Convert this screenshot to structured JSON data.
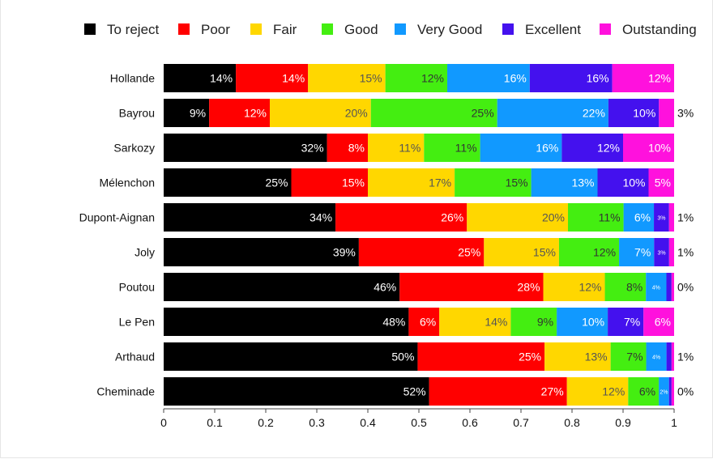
{
  "chart_data": {
    "type": "bar",
    "orientation": "horizontal",
    "stacked": true,
    "title": "",
    "xlabel": "",
    "ylabel": "",
    "xlim": [
      0,
      1
    ],
    "xticks": [
      "0",
      "0.1",
      "0.2",
      "0.3",
      "0.4",
      "0.5",
      "0.6",
      "0.7",
      "0.8",
      "0.9",
      "1"
    ],
    "legend_position": "top",
    "categories": [
      "Hollande",
      "Bayrou",
      "Sarkozy",
      "Mélenchon",
      "Dupont-Aignan",
      "Joly",
      "Poutou",
      "Le Pen",
      "Arthaud",
      "Cheminade"
    ],
    "series": [
      {
        "name": "To reject",
        "color": "#000000",
        "label_color": "#ffffff",
        "values": [
          0.14,
          0.09,
          0.32,
          0.25,
          0.34,
          0.39,
          0.46,
          0.48,
          0.5,
          0.52
        ]
      },
      {
        "name": "Poor",
        "color": "#ff0000",
        "label_color": "#ffffff",
        "values": [
          0.14,
          0.12,
          0.08,
          0.15,
          0.26,
          0.25,
          0.28,
          0.06,
          0.25,
          0.27
        ]
      },
      {
        "name": "Fair",
        "color": "#ffd700",
        "label_color": "#555555",
        "values": [
          0.15,
          0.2,
          0.11,
          0.17,
          0.2,
          0.15,
          0.12,
          0.14,
          0.13,
          0.12
        ]
      },
      {
        "name": "Good",
        "color": "#44ee11",
        "label_color": "#333333",
        "values": [
          0.12,
          0.25,
          0.11,
          0.15,
          0.11,
          0.12,
          0.08,
          0.09,
          0.07,
          0.06
        ]
      },
      {
        "name": "Very Good",
        "color": "#1199ff",
        "label_color": "#ffffff",
        "values": [
          0.16,
          0.22,
          0.16,
          0.13,
          0.06,
          0.07,
          0.04,
          0.1,
          0.04,
          0.02
        ]
      },
      {
        "name": "Excellent",
        "color": "#4411ee",
        "label_color": "#ffffff",
        "values": [
          0.16,
          0.1,
          0.12,
          0.1,
          0.03,
          0.03,
          0.01,
          0.07,
          0.01,
          0.005
        ]
      },
      {
        "name": "Outstanding",
        "color": "#ff11dd",
        "label_color": "#ffffff",
        "values": [
          0.12,
          0.03,
          0.1,
          0.05,
          0.01,
          0.01,
          0.005,
          0.06,
          0.005,
          0.005
        ]
      }
    ],
    "value_labels": [
      [
        "14%",
        "14%",
        "15%",
        "12%",
        "16%",
        "16%",
        "12%"
      ],
      [
        "9%",
        "12%",
        "20%",
        "25%",
        "22%",
        "10%",
        "3%"
      ],
      [
        "32%",
        "8%",
        "11%",
        "11%",
        "16%",
        "12%",
        "10%"
      ],
      [
        "25%",
        "15%",
        "17%",
        "15%",
        "13%",
        "10%",
        "5%"
      ],
      [
        "34%",
        "26%",
        "20%",
        "11%",
        "6%",
        "3%",
        "1%"
      ],
      [
        "39%",
        "25%",
        "15%",
        "12%",
        "7%",
        "3%",
        "1%"
      ],
      [
        "46%",
        "28%",
        "12%",
        "8%",
        "4%",
        "",
        "0%"
      ],
      [
        "48%",
        "6%",
        "14%",
        "9%",
        "10%",
        "7%",
        "6%"
      ],
      [
        "50%",
        "25%",
        "13%",
        "7%",
        "4%",
        "",
        "1%"
      ],
      [
        "52%",
        "27%",
        "12%",
        "6%",
        "2%",
        "",
        "0%"
      ]
    ]
  }
}
